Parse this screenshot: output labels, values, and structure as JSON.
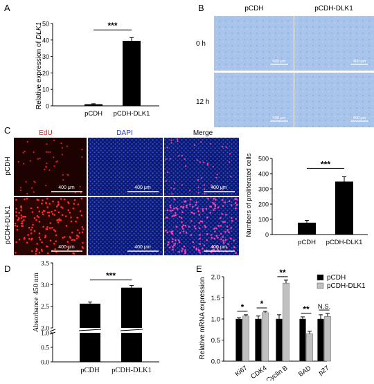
{
  "panels": {
    "A": "A",
    "B": "B",
    "C": "C",
    "D": "D",
    "E": "E"
  },
  "colors": {
    "bar_black": "#000000",
    "bar_gray": "#c0c0c0",
    "microscopy_blue": "#a9c4ea",
    "edu_red": "#d81b1b",
    "dapi_blue": "#2a3fc8",
    "significance_label": "#000000"
  },
  "panelA": {
    "ylabel_prefix": "Relative expression of ",
    "ylabel_gene": "DLK1",
    "significance": "***"
  },
  "panelB": {
    "col_labels": [
      "pCDH",
      "pCDH-DLK1"
    ],
    "row_labels": [
      "0 h",
      "12 h"
    ],
    "scale_label": "400 μm"
  },
  "panelC": {
    "channel_labels": [
      "EdU",
      "DAPI",
      "Merge"
    ],
    "row_labels": [
      "pCDH",
      "pCDH-DLK1"
    ],
    "scale_label": "400 μm",
    "significance": "***"
  },
  "panelD": {
    "ylabel_line1": "Absorbance",
    "ylabel_line2": "450 nm",
    "significance": "***"
  },
  "panelE": {
    "ylabel": "Relative mRNA expression"
  },
  "chart_data": [
    {
      "id": "A",
      "type": "bar",
      "categories": [
        "pCDH",
        "pCDH-DLK1"
      ],
      "values": [
        1,
        39.5
      ],
      "errors": [
        0.3,
        2
      ],
      "ylim": [
        0,
        50
      ],
      "yticks": [
        0,
        10,
        20,
        30,
        40,
        50
      ],
      "ylabel": "Relative expression of DLK1",
      "annotations": [
        "***"
      ]
    },
    {
      "id": "C",
      "type": "bar",
      "categories": [
        "pCDH",
        "pCDH-DLK1"
      ],
      "values": [
        78,
        348
      ],
      "errors": [
        15,
        32
      ],
      "ylim": [
        0,
        500
      ],
      "yticks": [
        0,
        100,
        200,
        300,
        400,
        500
      ],
      "ylabel": "Numbers of proliferated cells",
      "annotations": [
        "***"
      ]
    },
    {
      "id": "D",
      "type": "bar",
      "categories": [
        "pCDH",
        "pCDH-DLK1"
      ],
      "values": [
        2.56,
        2.93
      ],
      "errors": [
        0.04,
        0.05
      ],
      "axis_break": [
        1.0,
        2.0
      ],
      "yticks": [
        "0.0",
        "0.5",
        "1.0",
        "2.0",
        "2.5",
        "3.0",
        "3.5"
      ],
      "ylabel": "Absorbance 450 nm",
      "annotations": [
        "***"
      ]
    },
    {
      "id": "E",
      "type": "bar",
      "categories": [
        "Ki67",
        "CDK4",
        "Cyclin B",
        "BAD",
        "p27"
      ],
      "series": [
        {
          "name": "pCDH",
          "values": [
            1.0,
            1.0,
            1.0,
            1.0,
            1.0
          ],
          "errors": [
            0.03,
            0.07,
            0.1,
            0.05,
            0.1
          ]
        },
        {
          "name": "pCDH-DLK1",
          "values": [
            1.07,
            1.15,
            1.85,
            0.65,
            1.06
          ],
          "errors": [
            0.03,
            0.03,
            0.07,
            0.06,
            0.07
          ]
        }
      ],
      "significance": [
        "*",
        "*",
        "**",
        "**",
        "N.S."
      ],
      "ylim": [
        0,
        2.0
      ],
      "yticks": [
        "0.0",
        "0.5",
        "1.0",
        "1.5",
        "2.0"
      ],
      "ylabel": "Relative mRNA expression",
      "legend": "top-right"
    }
  ]
}
